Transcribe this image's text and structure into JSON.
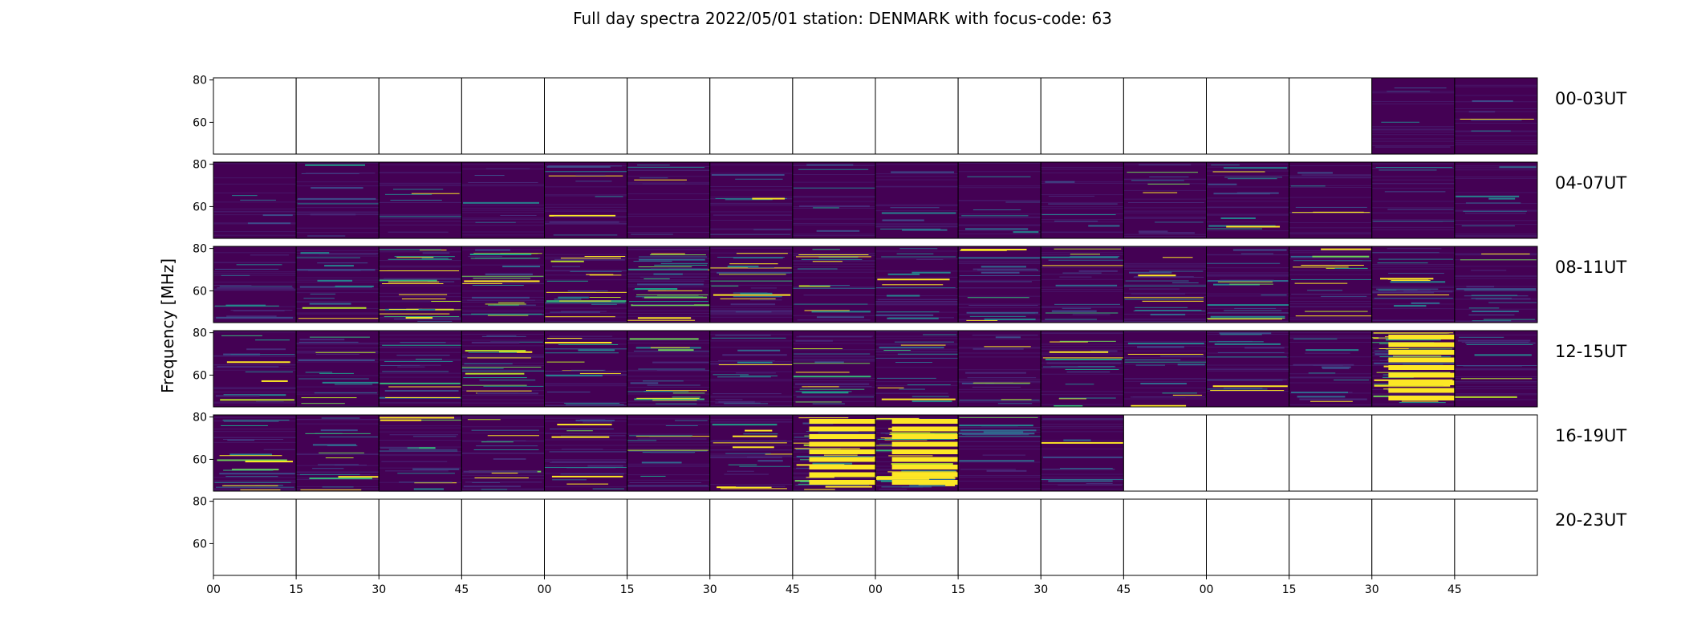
{
  "title": "Full day spectra 2022/05/01 station: DENMARK with focus-code: 63",
  "chart_data": {
    "type": "heatmap",
    "title": "Full day spectra 2022/05/01 station: DENMARK with focus-code: 63",
    "ylabel": "Frequency [MHz]",
    "xlabel": "",
    "ylim": [
      45,
      81
    ],
    "y_ticks": [
      "80",
      "60"
    ],
    "x_ticks": [
      "00",
      "15",
      "30",
      "45",
      "00",
      "15",
      "30",
      "45",
      "00",
      "15",
      "30",
      "45",
      "00",
      "15",
      "30",
      "45"
    ],
    "colormap": "viridis",
    "colors": {
      "background": "#440154",
      "low": "#482878",
      "mid": "#21918c",
      "high": "#fde725"
    },
    "panels_per_row": 16,
    "rows": [
      {
        "label": "00-03UT",
        "available": [
          0,
          0,
          0,
          0,
          0,
          0,
          0,
          0,
          0,
          0,
          0,
          0,
          0,
          0,
          1,
          1
        ],
        "intensity": [
          0,
          0,
          0,
          0,
          0,
          0,
          0,
          0,
          0,
          0,
          0,
          0,
          0,
          0,
          0.1,
          0.12
        ]
      },
      {
        "label": "04-07UT",
        "available": [
          1,
          1,
          1,
          1,
          1,
          1,
          1,
          1,
          1,
          1,
          1,
          1,
          1,
          1,
          1,
          1
        ],
        "intensity": [
          0.1,
          0.2,
          0.15,
          0.15,
          0.3,
          0.15,
          0.2,
          0.15,
          0.15,
          0.15,
          0.15,
          0.25,
          0.3,
          0.15,
          0.15,
          0.2
        ]
      },
      {
        "label": "08-11UT",
        "available": [
          1,
          1,
          1,
          1,
          1,
          1,
          1,
          1,
          1,
          1,
          1,
          1,
          1,
          1,
          1,
          1
        ],
        "intensity": [
          0.35,
          0.4,
          0.7,
          0.6,
          0.55,
          0.75,
          0.55,
          0.4,
          0.4,
          0.4,
          0.4,
          0.45,
          0.4,
          0.4,
          0.45,
          0.4
        ]
      },
      {
        "label": "12-15UT",
        "available": [
          1,
          1,
          1,
          1,
          1,
          1,
          1,
          1,
          1,
          1,
          1,
          1,
          1,
          1,
          1,
          1
        ],
        "intensity": [
          0.35,
          0.35,
          0.35,
          0.5,
          0.4,
          0.5,
          0.4,
          0.45,
          0.4,
          0.35,
          0.4,
          0.35,
          0.35,
          0.35,
          0.95,
          0.25
        ]
      },
      {
        "label": "16-19UT",
        "available": [
          1,
          1,
          1,
          1,
          1,
          1,
          1,
          1,
          1,
          1,
          1,
          0,
          0,
          0,
          0,
          0
        ],
        "intensity": [
          0.5,
          0.45,
          0.4,
          0.4,
          0.5,
          0.4,
          0.5,
          0.85,
          0.95,
          0.35,
          0.25,
          0,
          0,
          0,
          0,
          0
        ]
      },
      {
        "label": "20-23UT",
        "available": [
          0,
          0,
          0,
          0,
          0,
          0,
          0,
          0,
          0,
          0,
          0,
          0,
          0,
          0,
          0,
          0
        ],
        "intensity": [
          0,
          0,
          0,
          0,
          0,
          0,
          0,
          0,
          0,
          0,
          0,
          0,
          0,
          0,
          0,
          0
        ]
      }
    ]
  }
}
